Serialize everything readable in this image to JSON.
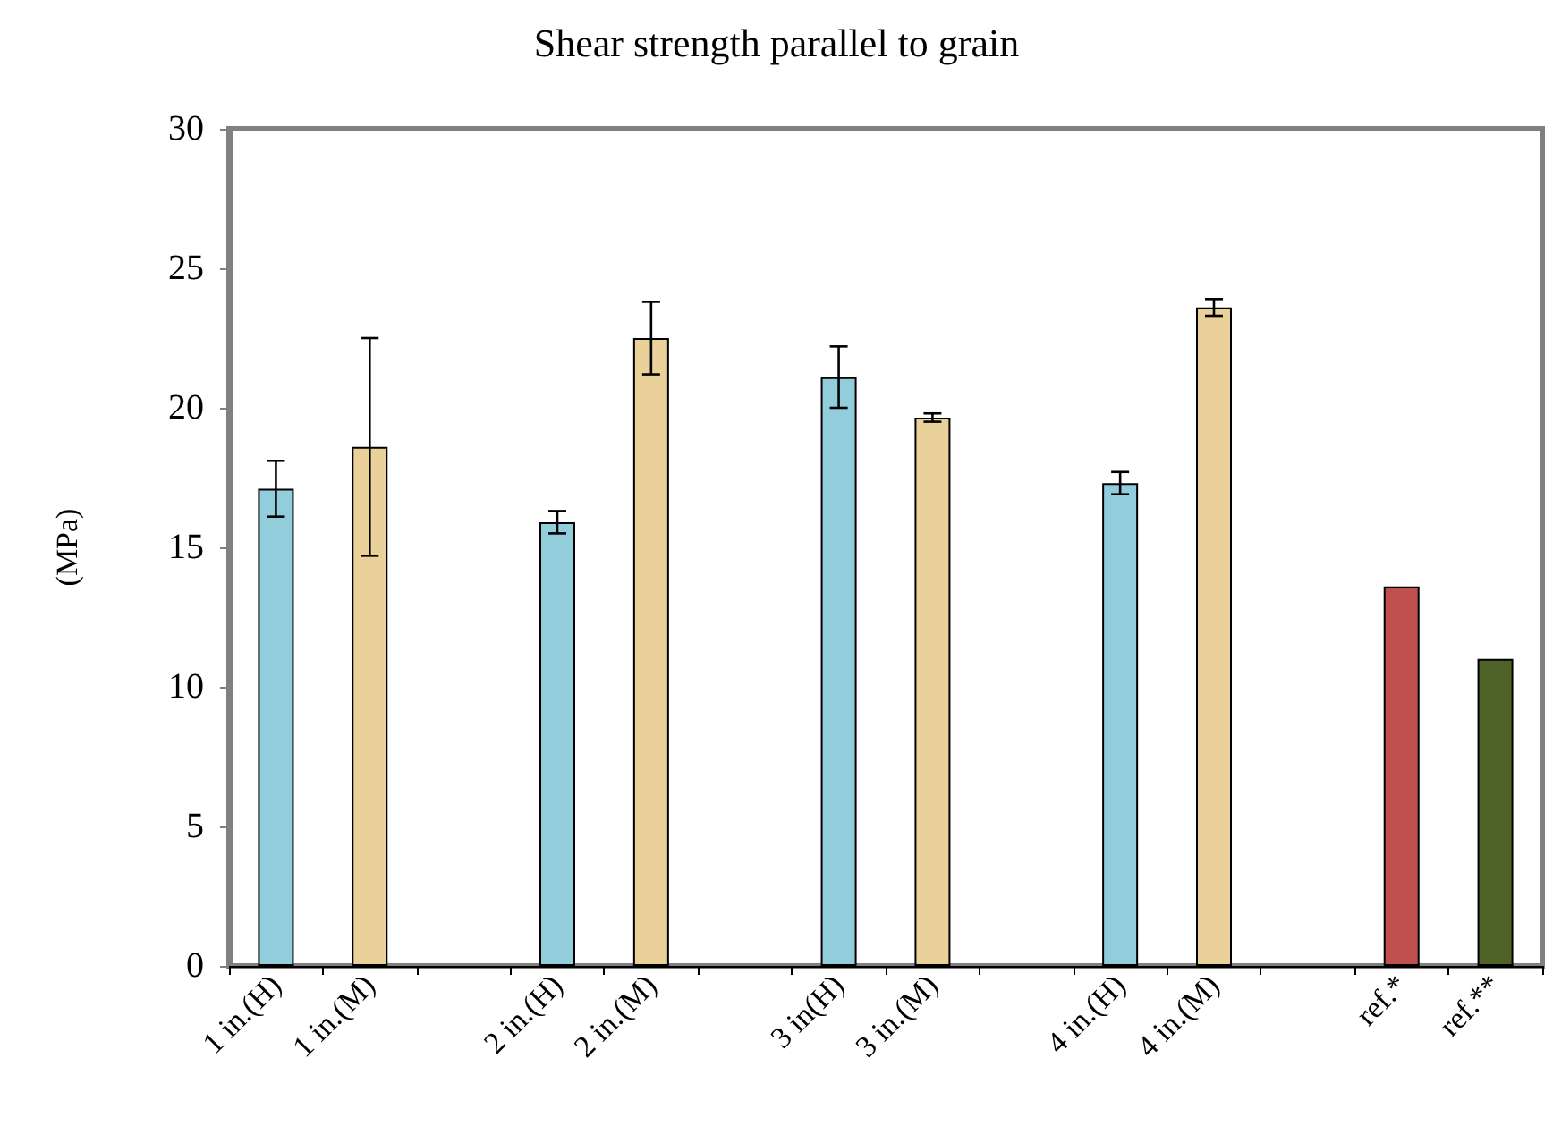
{
  "chart_data": {
    "type": "bar",
    "title": "Shear strength parallel to grain",
    "ylabel": "(MPa)",
    "categories": [
      "1 in.(H)",
      "1 in.(M)",
      null,
      "2 in.(H)",
      "2 in.(M)",
      null,
      "3 in(H)",
      "3 in.(M)",
      null,
      "4 in.(H)",
      "4 in.(M)",
      null,
      "ref.*",
      "ref.**"
    ],
    "values": [
      17.1,
      18.6,
      null,
      15.9,
      22.5,
      null,
      21.1,
      19.65,
      null,
      17.3,
      23.6,
      null,
      13.6,
      11.0
    ],
    "colors": [
      "#92cddc",
      "#ead19a",
      null,
      "#92cddc",
      "#ead19a",
      null,
      "#92cddc",
      "#ead19a",
      null,
      "#92cddc",
      "#ead19a",
      null,
      "#c0504d",
      "#4f6228"
    ],
    "errors": [
      [
        16.1,
        18.1
      ],
      [
        14.7,
        22.5
      ],
      null,
      [
        15.5,
        16.3
      ],
      [
        21.2,
        23.8
      ],
      null,
      [
        20.0,
        22.2
      ],
      [
        19.5,
        19.8
      ],
      null,
      [
        16.9,
        17.7
      ],
      [
        23.3,
        23.9
      ],
      null,
      null,
      null
    ],
    "ylim": [
      0,
      30
    ],
    "yticks": [
      0,
      5,
      10,
      15,
      20,
      25,
      30
    ],
    "grid": false
  }
}
